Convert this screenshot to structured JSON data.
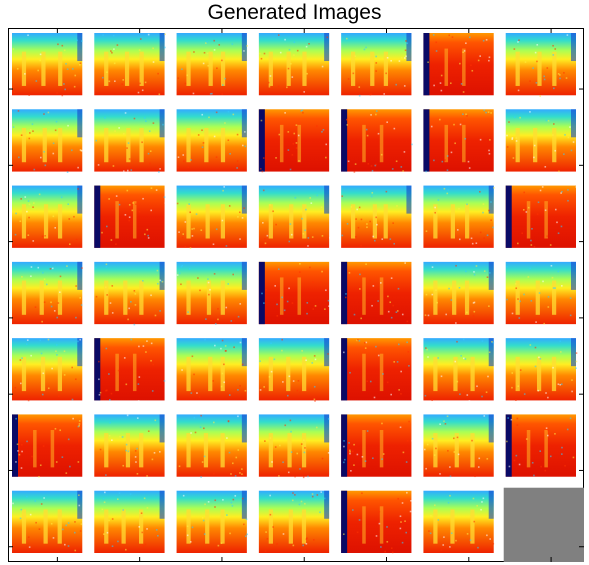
{
  "title": "Generated Images",
  "chart_data": {
    "type": "image-grid",
    "title": "Generated Images",
    "rows": 7,
    "cols": 7,
    "colormap": "jet",
    "tile_count": 48,
    "empty_cell_color": "#808080",
    "empty_cells": [
      [
        6,
        6
      ]
    ],
    "tile_variant_legend": {
      "s": "spectrogram: warm lower region with cool top band and cool vertical stripes",
      "r": "red-dominant spectrogram with a dark blue edge band",
      "e": "empty gray placeholder"
    },
    "tiles": [
      [
        "s",
        "s",
        "s",
        "s",
        "s",
        "r",
        "s"
      ],
      [
        "s",
        "s",
        "s",
        "r",
        "r",
        "r",
        "s"
      ],
      [
        "s",
        "r",
        "s",
        "s",
        "s",
        "s",
        "r"
      ],
      [
        "s",
        "s",
        "s",
        "r",
        "r",
        "s",
        "s"
      ],
      [
        "s",
        "r",
        "s",
        "s",
        "r",
        "s",
        "s"
      ],
      [
        "r",
        "s",
        "s",
        "s",
        "r",
        "s",
        "r"
      ],
      [
        "s",
        "s",
        "s",
        "s",
        "r",
        "s",
        "e"
      ]
    ],
    "x_ticks_visible": true,
    "y_ticks_visible": true,
    "tick_labels": false
  }
}
